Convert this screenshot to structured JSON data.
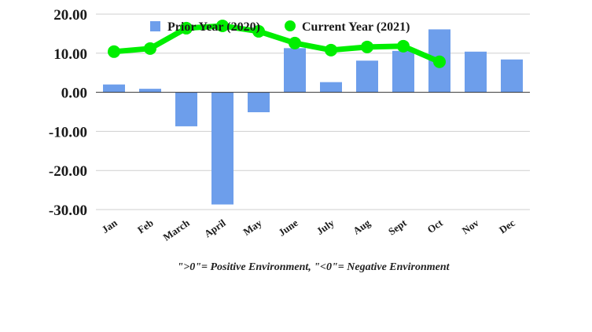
{
  "chart_data": {
    "type": "bar",
    "categories": [
      "Jan",
      "Feb",
      "March",
      "April",
      "May",
      "June",
      "July",
      "Aug",
      "Sept",
      "Oct",
      "Nov",
      "Dec"
    ],
    "series": [
      {
        "name": "Prior Year (2020)",
        "type": "bar",
        "color": "#6d9eeb",
        "values": [
          2.0,
          0.9,
          -8.7,
          -28.7,
          -5.1,
          11.3,
          2.6,
          8.1,
          10.6,
          16.1,
          10.4,
          8.4
        ]
      },
      {
        "name": "Current Year (2021)",
        "type": "line",
        "color": "#00ee00",
        "values": [
          10.4,
          11.2,
          16.4,
          17.0,
          15.6,
          12.6,
          10.8,
          11.6,
          11.8,
          7.8,
          null,
          null
        ]
      }
    ],
    "ylim": [
      -30,
      20
    ],
    "yticks": [
      20,
      10,
      0,
      -10,
      -20,
      -30
    ],
    "ytick_labels": [
      "20.00",
      "10.00",
      "0.00",
      "-10.00",
      "-20.00",
      "-30.00"
    ],
    "legend_position": "top",
    "grid": true,
    "title": "",
    "xlabel": "",
    "ylabel": "",
    "note": "\">0\"= Positive Environment, \"<0\"= Negative Environment"
  }
}
